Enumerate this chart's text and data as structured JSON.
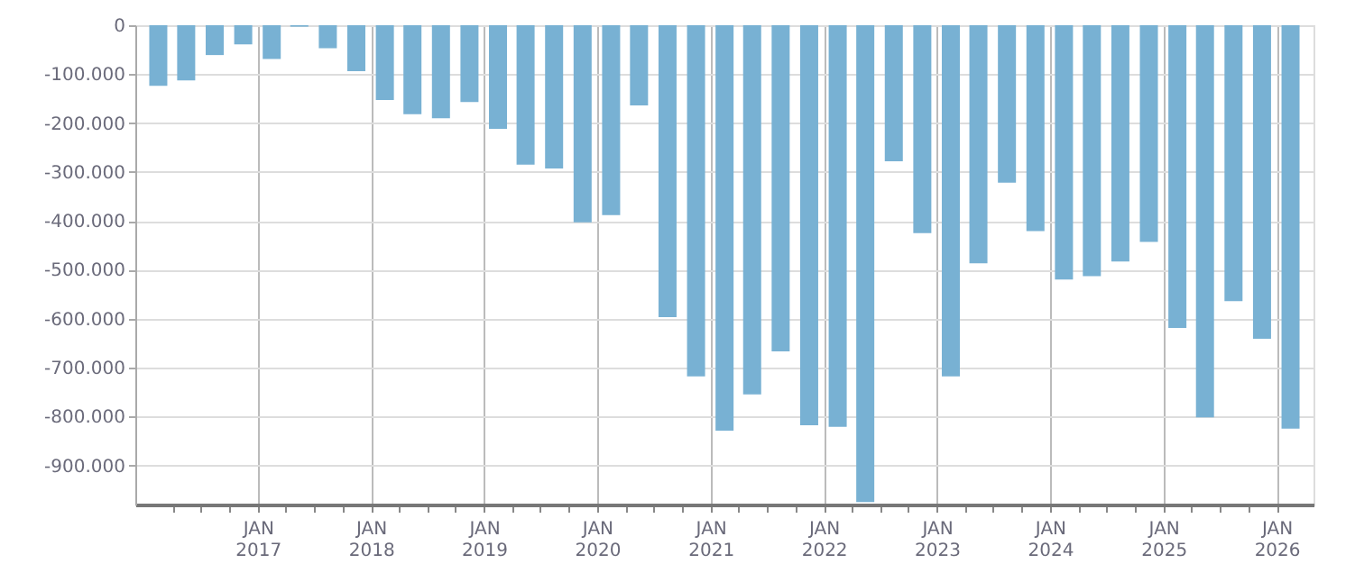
{
  "chart_data": {
    "type": "bar",
    "color": "#78b1d3",
    "x": [
      "2016-02-15",
      "2016-05-15",
      "2016-08-15",
      "2016-11-15",
      "2017-02-15",
      "2017-05-15",
      "2017-08-15",
      "2017-11-15",
      "2018-02-15",
      "2018-05-15",
      "2018-08-15",
      "2018-11-15",
      "2019-02-15",
      "2019-05-15",
      "2019-08-15",
      "2019-11-15",
      "2020-02-15",
      "2020-05-15",
      "2020-08-15",
      "2020-11-15",
      "2021-02-15",
      "2021-05-15",
      "2021-08-15",
      "2021-11-15",
      "2022-02-15",
      "2022-05-15",
      "2022-08-15",
      "2022-11-15",
      "2023-02-15",
      "2023-05-15",
      "2023-08-15",
      "2023-11-15",
      "2024-02-15",
      "2024-05-15",
      "2024-08-15",
      "2024-11-15",
      "2025-02-15",
      "2025-05-15",
      "2025-08-15",
      "2025-11-15",
      "2026-02-15"
    ],
    "values": [
      -124000,
      -113000,
      -61000,
      -39000,
      -69000,
      -3000,
      -47000,
      -94000,
      -153000,
      -182000,
      -190000,
      -157000,
      -212000,
      -285000,
      -293000,
      -403000,
      -388000,
      -164000,
      -597000,
      -718000,
      -829000,
      -755000,
      -667000,
      -818000,
      -821000,
      -975000,
      -278000,
      -425000,
      -718000,
      -487000,
      -322000,
      -421000,
      -520000,
      -513000,
      -483000,
      -443000,
      -619000,
      -802000,
      -564000,
      -641000,
      -825000
    ],
    "xlim": [
      "2016-01-01",
      "2026-04-01"
    ],
    "xticks": [
      {
        "value": "2016-04-01",
        "label": null
      },
      {
        "value": "2016-07-01",
        "label": null
      },
      {
        "value": "2016-10-01",
        "label": null
      },
      {
        "value": "2017-01-01",
        "label": "JAN 2017"
      },
      {
        "value": "2017-04-01",
        "label": null
      },
      {
        "value": "2017-07-01",
        "label": null
      },
      {
        "value": "2017-10-01",
        "label": null
      },
      {
        "value": "2018-01-01",
        "label": "JAN 2018"
      },
      {
        "value": "2018-04-01",
        "label": null
      },
      {
        "value": "2018-07-01",
        "label": null
      },
      {
        "value": "2018-10-01",
        "label": null
      },
      {
        "value": "2019-01-01",
        "label": "JAN 2019"
      },
      {
        "value": "2019-04-01",
        "label": null
      },
      {
        "value": "2019-07-01",
        "label": null
      },
      {
        "value": "2019-10-01",
        "label": null
      },
      {
        "value": "2020-01-01",
        "label": "JAN 2020"
      },
      {
        "value": "2020-04-01",
        "label": null
      },
      {
        "value": "2020-07-01",
        "label": null
      },
      {
        "value": "2020-10-01",
        "label": null
      },
      {
        "value": "2021-01-01",
        "label": "JAN 2021"
      },
      {
        "value": "2021-04-01",
        "label": null
      },
      {
        "value": "2021-07-01",
        "label": null
      },
      {
        "value": "2021-10-01",
        "label": null
      },
      {
        "value": "2022-01-01",
        "label": "JAN 2022"
      },
      {
        "value": "2022-04-01",
        "label": null
      },
      {
        "value": "2022-07-01",
        "label": null
      },
      {
        "value": "2022-10-01",
        "label": null
      },
      {
        "value": "2023-01-01",
        "label": "JAN 2023"
      },
      {
        "value": "2023-04-01",
        "label": null
      },
      {
        "value": "2023-07-01",
        "label": null
      },
      {
        "value": "2023-10-01",
        "label": null
      },
      {
        "value": "2024-01-01",
        "label": "JAN 2024"
      },
      {
        "value": "2024-04-01",
        "label": null
      },
      {
        "value": "2024-07-01",
        "label": null
      },
      {
        "value": "2024-10-01",
        "label": null
      },
      {
        "value": "2025-01-01",
        "label": "JAN 2025"
      },
      {
        "value": "2025-04-01",
        "label": null
      },
      {
        "value": "2025-07-01",
        "label": null
      },
      {
        "value": "2025-10-01",
        "label": null
      },
      {
        "value": "2026-01-01",
        "label": "JAN 2026"
      }
    ],
    "ylim": [
      -980000,
      0
    ],
    "yticks": [
      {
        "value": -900000,
        "label": "-900.000"
      },
      {
        "value": -800000,
        "label": "-800.000"
      },
      {
        "value": -700000,
        "label": "-700.000"
      },
      {
        "value": -600000,
        "label": "-600.000"
      },
      {
        "value": -500000,
        "label": "-500.000"
      },
      {
        "value": -400000,
        "label": "-400.000"
      },
      {
        "value": -300000,
        "label": "-300.000"
      },
      {
        "value": -200000,
        "label": "-200.000"
      },
      {
        "value": -100000,
        "label": "-100.000"
      },
      0
    ],
    "grid": true
  }
}
